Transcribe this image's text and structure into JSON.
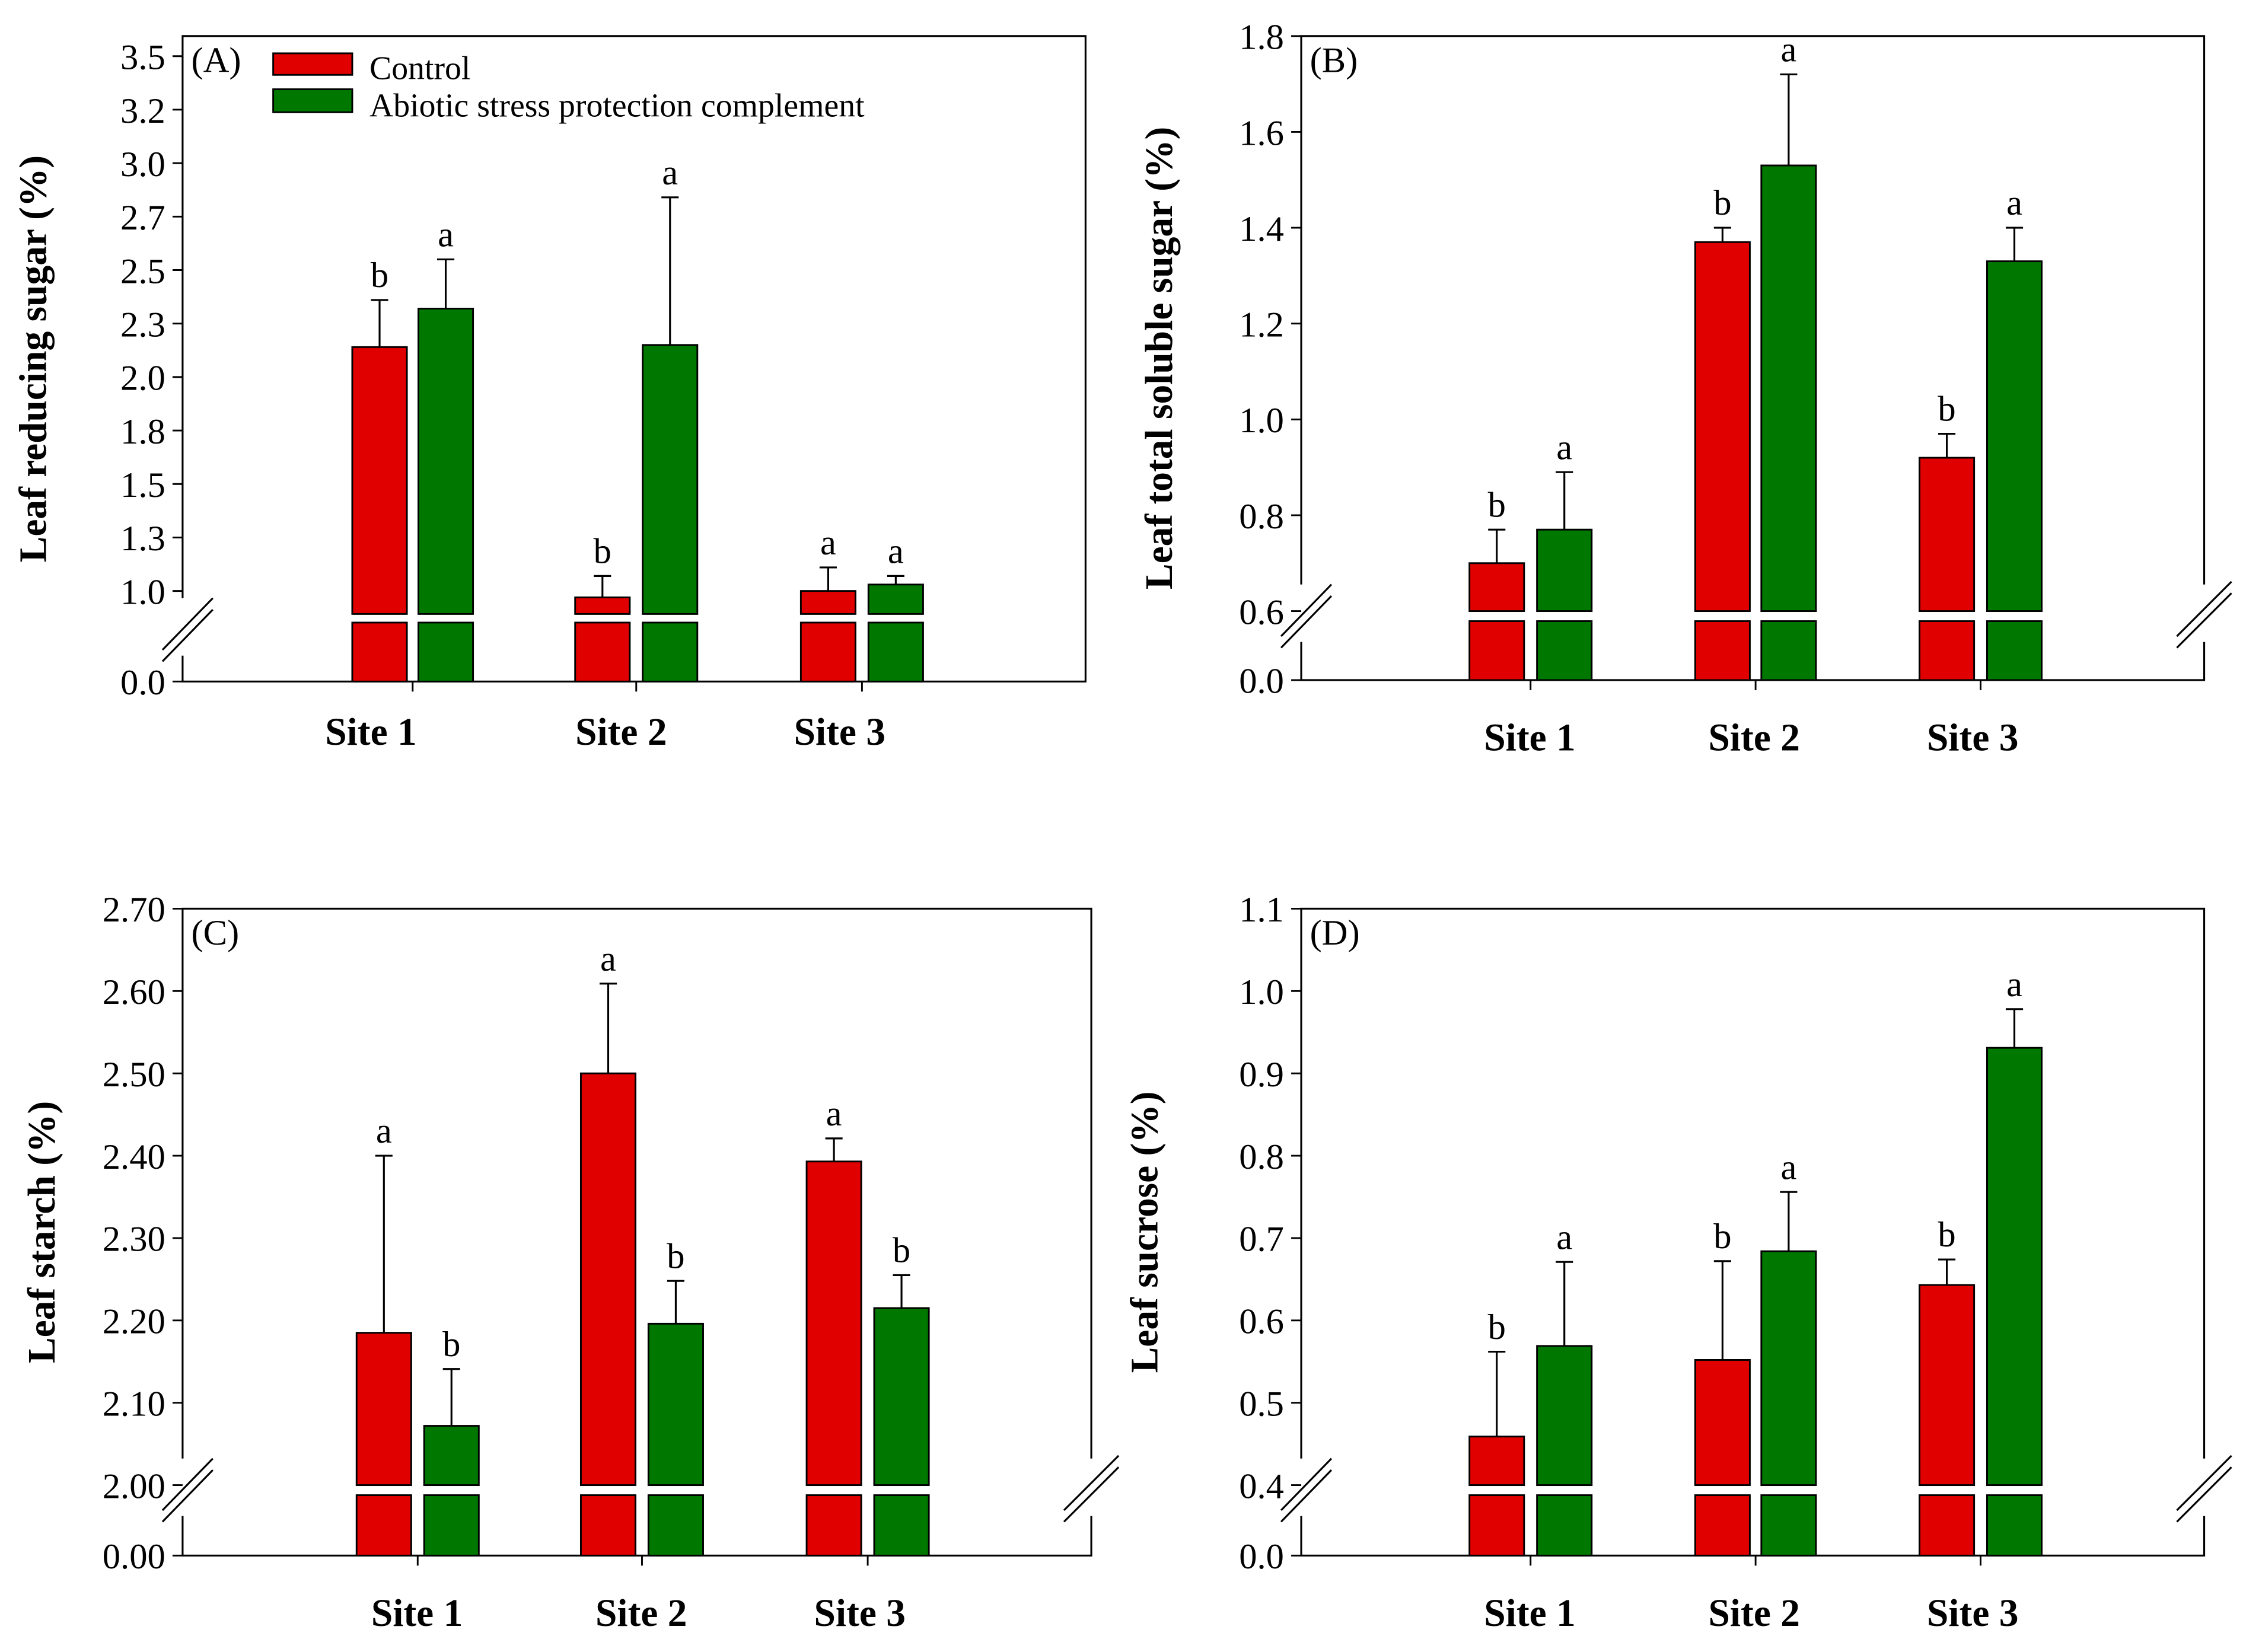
{
  "colors": {
    "control": "#e00000",
    "treatment": "#007800"
  },
  "legend": {
    "control": "Control",
    "treatment": "Abiotic stress protection complement"
  },
  "chart_data": [
    {
      "type": "bar",
      "panel_label": "(A)",
      "ylabel": "Leaf reducing sugar (%)",
      "categories": [
        "Site 1",
        "Site 2",
        "Site 3"
      ],
      "ylim_upper": [
        1.0,
        3.5
      ],
      "yticks": [
        "1.0",
        "1.3",
        "1.5",
        "1.8",
        "2.0",
        "2.3",
        "2.5",
        "2.7",
        "3.0",
        "3.2",
        "3.5"
      ],
      "ybottom_tick": "0.0",
      "axis_break": true,
      "series": [
        {
          "name": "Control",
          "values": [
            2.14,
            0.97,
            1.0
          ],
          "error_upper": [
            2.36,
            1.07,
            1.11
          ],
          "letters": [
            "b",
            "b",
            "a"
          ]
        },
        {
          "name": "Abiotic stress protection complement",
          "values": [
            2.32,
            2.15,
            1.03
          ],
          "error_upper": [
            2.55,
            2.84,
            1.07
          ],
          "letters": [
            "a",
            "a",
            "a"
          ]
        }
      ]
    },
    {
      "type": "bar",
      "panel_label": "(B)",
      "ylabel": "Leaf total soluble sugar (%)",
      "categories": [
        "Site 1",
        "Site 2",
        "Site 3"
      ],
      "ylim_upper": [
        0.6,
        1.8
      ],
      "yticks": [
        "0.6",
        "0.8",
        "1.0",
        "1.2",
        "1.4",
        "1.6",
        "1.8"
      ],
      "ybottom_tick": "0.0",
      "axis_break": true,
      "series": [
        {
          "name": "Control",
          "values": [
            0.7,
            1.37,
            0.92
          ],
          "error_upper": [
            0.77,
            1.4,
            0.97
          ],
          "letters": [
            "b",
            "b",
            "b"
          ]
        },
        {
          "name": "Abiotic stress protection complement",
          "values": [
            0.77,
            1.53,
            1.33
          ],
          "error_upper": [
            0.89,
            1.72,
            1.4
          ],
          "letters": [
            "a",
            "a",
            "a"
          ]
        }
      ]
    },
    {
      "type": "bar",
      "panel_label": "(C)",
      "ylabel": "Leaf starch (%)",
      "categories": [
        "Site 1",
        "Site 2",
        "Site 3"
      ],
      "ylim_upper": [
        2.0,
        2.7
      ],
      "yticks": [
        "2.00",
        "2.10",
        "2.20",
        "2.30",
        "2.40",
        "2.50",
        "2.60",
        "2.70"
      ],
      "ybottom_tick": "0.00",
      "axis_break": true,
      "series": [
        {
          "name": "Control",
          "values": [
            2.185,
            2.5,
            2.393
          ],
          "error_upper": [
            2.4,
            2.609,
            2.421
          ],
          "letters": [
            "a",
            "a",
            "a"
          ]
        },
        {
          "name": "Abiotic stress protection complement",
          "values": [
            2.072,
            2.196,
            2.215
          ],
          "error_upper": [
            2.141,
            2.248,
            2.255
          ],
          "letters": [
            "b",
            "b",
            "b"
          ]
        }
      ]
    },
    {
      "type": "bar",
      "panel_label": "(D)",
      "ylabel": "Leaf sucrose (%)",
      "categories": [
        "Site 1",
        "Site 2",
        "Site 3"
      ],
      "ylim_upper": [
        0.4,
        1.1
      ],
      "yticks": [
        "0.4",
        "0.5",
        "0.6",
        "0.7",
        "0.8",
        "0.9",
        "1.0",
        "1.1"
      ],
      "ybottom_tick": "0.0",
      "axis_break": true,
      "series": [
        {
          "name": "Control",
          "values": [
            0.459,
            0.552,
            0.643
          ],
          "error_upper": [
            0.562,
            0.672,
            0.674
          ],
          "letters": [
            "b",
            "b",
            "b"
          ]
        },
        {
          "name": "Abiotic stress protection complement",
          "values": [
            0.569,
            0.684,
            0.931
          ],
          "error_upper": [
            0.671,
            0.756,
            0.978
          ],
          "letters": [
            "a",
            "a",
            "a"
          ]
        }
      ]
    }
  ]
}
